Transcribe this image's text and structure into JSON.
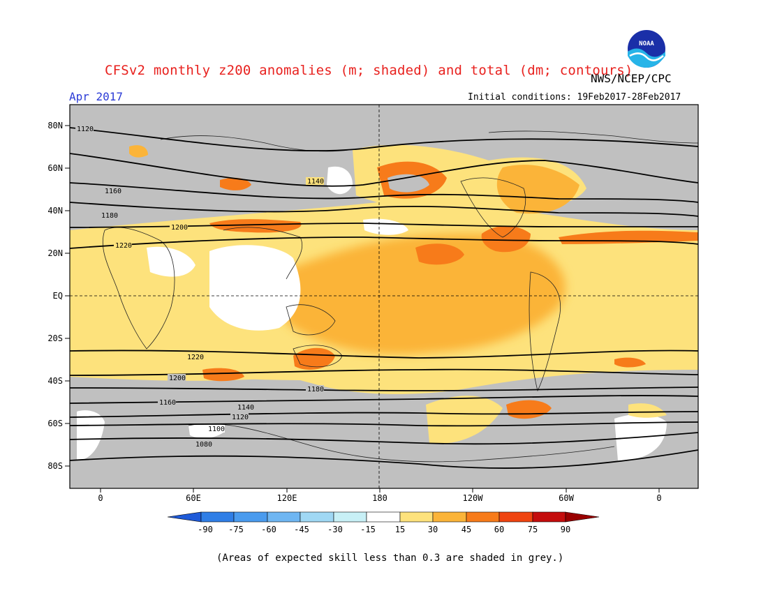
{
  "header": {
    "title": "CFSv2 monthly z200 anomalies (m; shaded) and total (dm; contours)",
    "agency": "NWS/NCEP/CPC",
    "period": "Apr 2017",
    "initial_conditions": "Initial conditions: 19Feb2017-28Feb2017",
    "logo_text": "NOAA"
  },
  "map": {
    "lat_labels": [
      "80N",
      "60N",
      "40N",
      "20N",
      "EQ",
      "20S",
      "40S",
      "60S",
      "80S"
    ],
    "lon_labels": [
      "0",
      "60E",
      "120E",
      "180",
      "120W",
      "60W",
      "0"
    ],
    "contour_labels": [
      "1120",
      "1140",
      "1160",
      "1180",
      "1200",
      "1220",
      "1220",
      "1200",
      "1180",
      "1160",
      "1140",
      "1120",
      "1100",
      "1080"
    ],
    "skill_mask_color": "#c0c0c0"
  },
  "colorbar": {
    "ticks": [
      "-90",
      "-75",
      "-60",
      "-45",
      "-30",
      "-15",
      "15",
      "30",
      "45",
      "60",
      "75",
      "90"
    ],
    "colors": [
      "#1e5ad8",
      "#2f7ee6",
      "#4a9bee",
      "#6fb6f2",
      "#a0d8f4",
      "#c8f0f6",
      "#ffffff",
      "#fde27c",
      "#fbb439",
      "#f77b1a",
      "#ef4410",
      "#c40d0d",
      "#990000"
    ]
  },
  "footnote": "(Areas of expected skill less than 0.3 are shaded in grey.)"
}
